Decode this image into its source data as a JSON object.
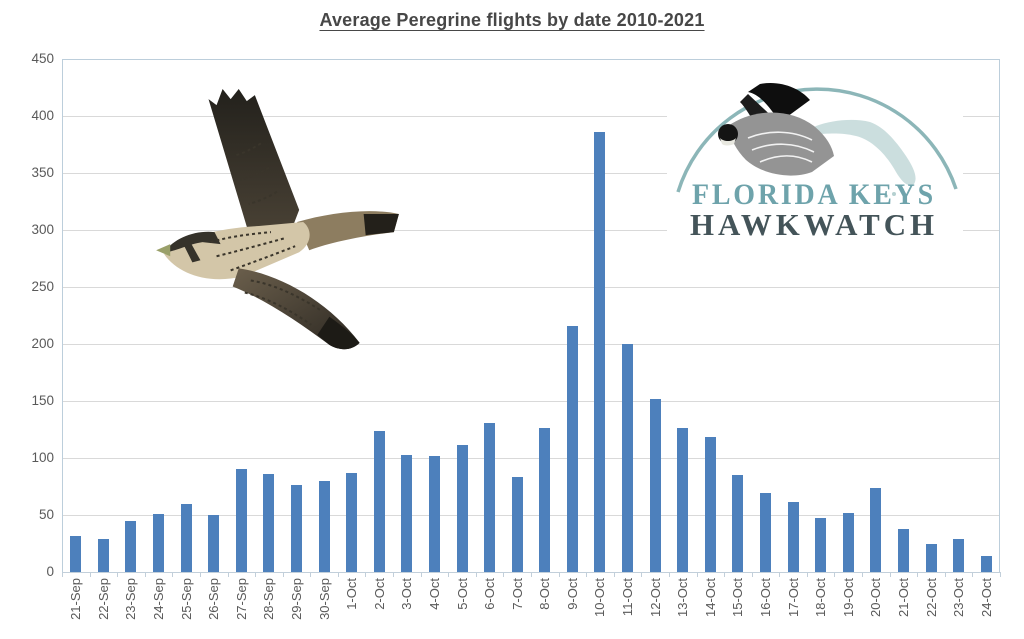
{
  "title": "Average Peregrine flights by date 2010-2021",
  "logo": {
    "line1": "FLORIDA KEYS",
    "line2": "HAWKWATCH",
    "teal_color": "#6ea3ab",
    "dark_color": "#445459",
    "arc_color": "#8cb6b8"
  },
  "colors": {
    "bar_fill": "#4d80bc",
    "gridline": "#d9d9d9",
    "plot_border": "#bccedb",
    "axis_text": "#595959",
    "title_text": "#474747"
  },
  "chart_data": {
    "type": "bar",
    "title": "Average Peregrine flights by date 2010-2021",
    "categories": [
      "21-Sep",
      "22-Sep",
      "23-Sep",
      "24-Sep",
      "25-Sep",
      "26-Sep",
      "27-Sep",
      "28-Sep",
      "29-Sep",
      "30-Sep",
      "1-Oct",
      "2-Oct",
      "3-Oct",
      "4-Oct",
      "5-Oct",
      "6-Oct",
      "7-Oct",
      "8-Oct",
      "9-Oct",
      "10-Oct",
      "11-Oct",
      "12-Oct",
      "13-Oct",
      "14-Oct",
      "15-Oct",
      "16-Oct",
      "17-Oct",
      "18-Oct",
      "19-Oct",
      "20-Oct",
      "21-Oct",
      "22-Oct",
      "23-Oct",
      "24-Oct"
    ],
    "values": [
      32,
      29,
      45,
      51,
      60,
      50,
      90,
      86,
      76,
      80,
      87,
      124,
      103,
      102,
      111,
      131,
      83,
      126,
      216,
      386,
      200,
      152,
      126,
      118,
      85,
      69,
      61,
      47,
      52,
      74,
      38,
      25,
      29,
      14
    ],
    "xlabel": "",
    "ylabel": "",
    "ylim": [
      0,
      450
    ],
    "ytick_step": 50,
    "grid": true,
    "legend": false,
    "bar_orientation": "vertical",
    "x_label_rotation": -90
  }
}
